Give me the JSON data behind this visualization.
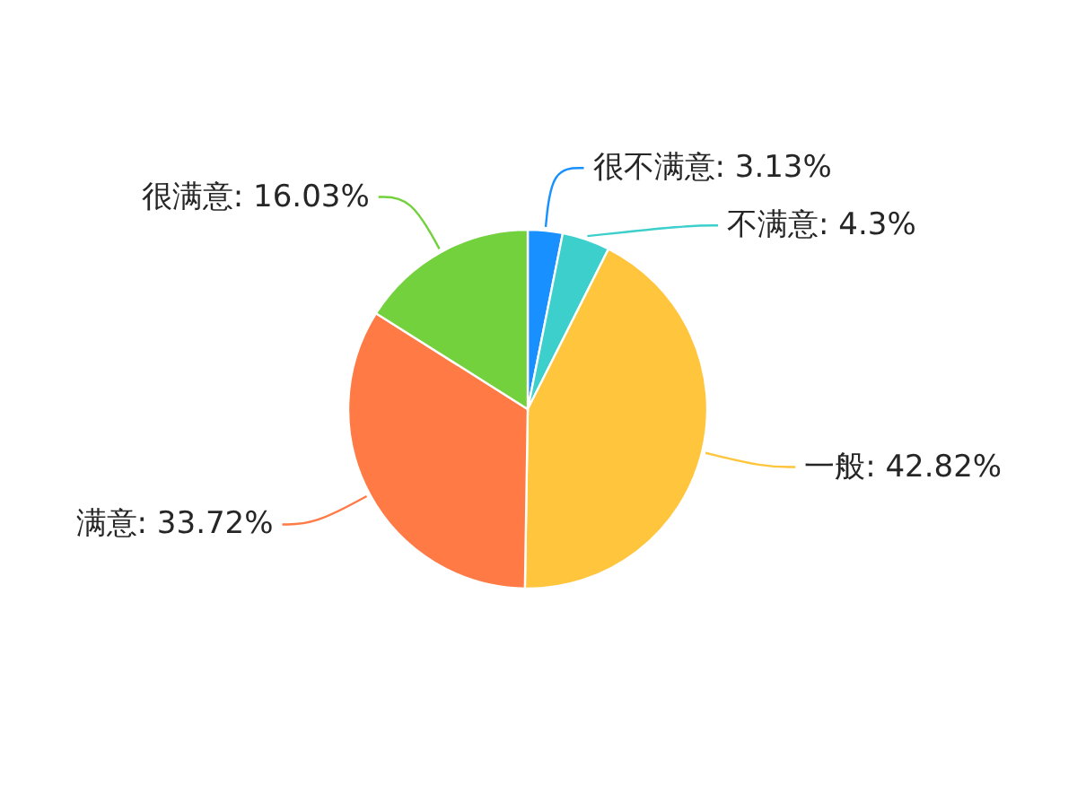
{
  "chart_data": {
    "type": "pie",
    "categories": [
      "很不满意",
      "不满意",
      "一般",
      "满意",
      "很满意"
    ],
    "values": [
      3.13,
      4.3,
      42.82,
      33.72,
      16.03
    ],
    "colors": [
      "#1890ff",
      "#3ccfcb",
      "#ffc53d",
      "#ff7a45",
      "#73d13d"
    ],
    "value_labels": [
      ": 3.13%",
      ": 4.3%",
      ": 42.82%",
      ": 33.72%",
      ": 16.03%"
    ]
  }
}
